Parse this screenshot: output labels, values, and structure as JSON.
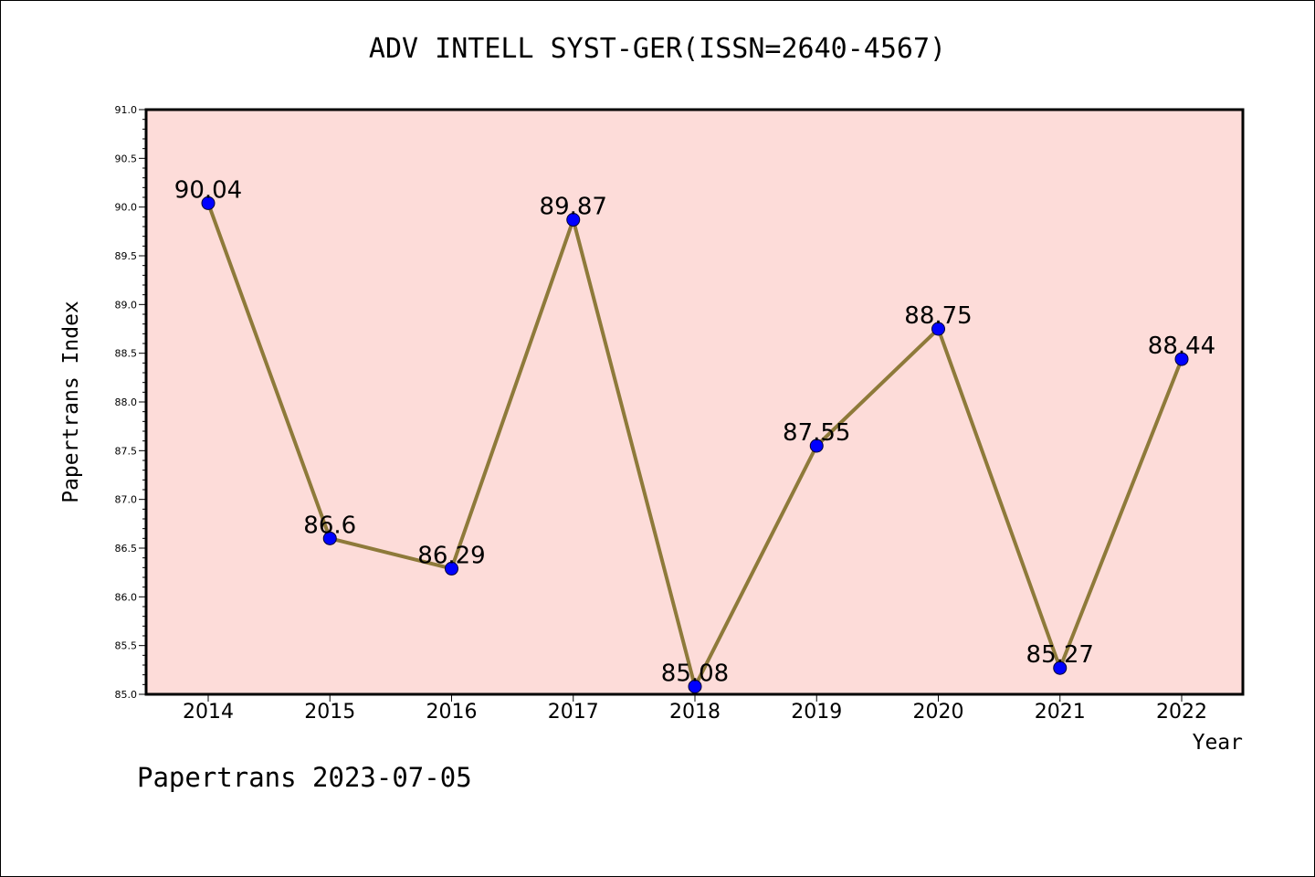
{
  "title": "ADV INTELL SYST-GER(ISSN=2640-4567)",
  "footer": "Papertrans 2023-07-05",
  "colors": {
    "plot_bg": "#fddcd9",
    "line": "#8e7a3a",
    "marker": "#0000ff",
    "axis": "#000000"
  },
  "chart_data": {
    "type": "line",
    "title": "ADV INTELL SYST-GER(ISSN=2640-4567)",
    "xlabel": "Year",
    "ylabel": "Papertrans Index",
    "categories": [
      "2014",
      "2015",
      "2016",
      "2017",
      "2018",
      "2019",
      "2020",
      "2021",
      "2022"
    ],
    "series": [
      {
        "values": [
          90.04,
          86.6,
          86.29,
          89.87,
          85.08,
          87.55,
          88.75,
          85.27,
          88.44
        ]
      }
    ],
    "data_labels": [
      "90.04",
      "86.6",
      "86.29",
      "89.87",
      "85.08",
      "87.55",
      "88.75",
      "85.27",
      "88.44"
    ],
    "ylim": [
      85.0,
      91.0
    ],
    "yticks": [
      "85.0",
      "85.5",
      "86.0",
      "86.5",
      "87.0",
      "87.5",
      "88.0",
      "88.5",
      "89.0",
      "89.5",
      "90.0",
      "90.5",
      "91.0"
    ],
    "grid": false,
    "legend": "none"
  }
}
